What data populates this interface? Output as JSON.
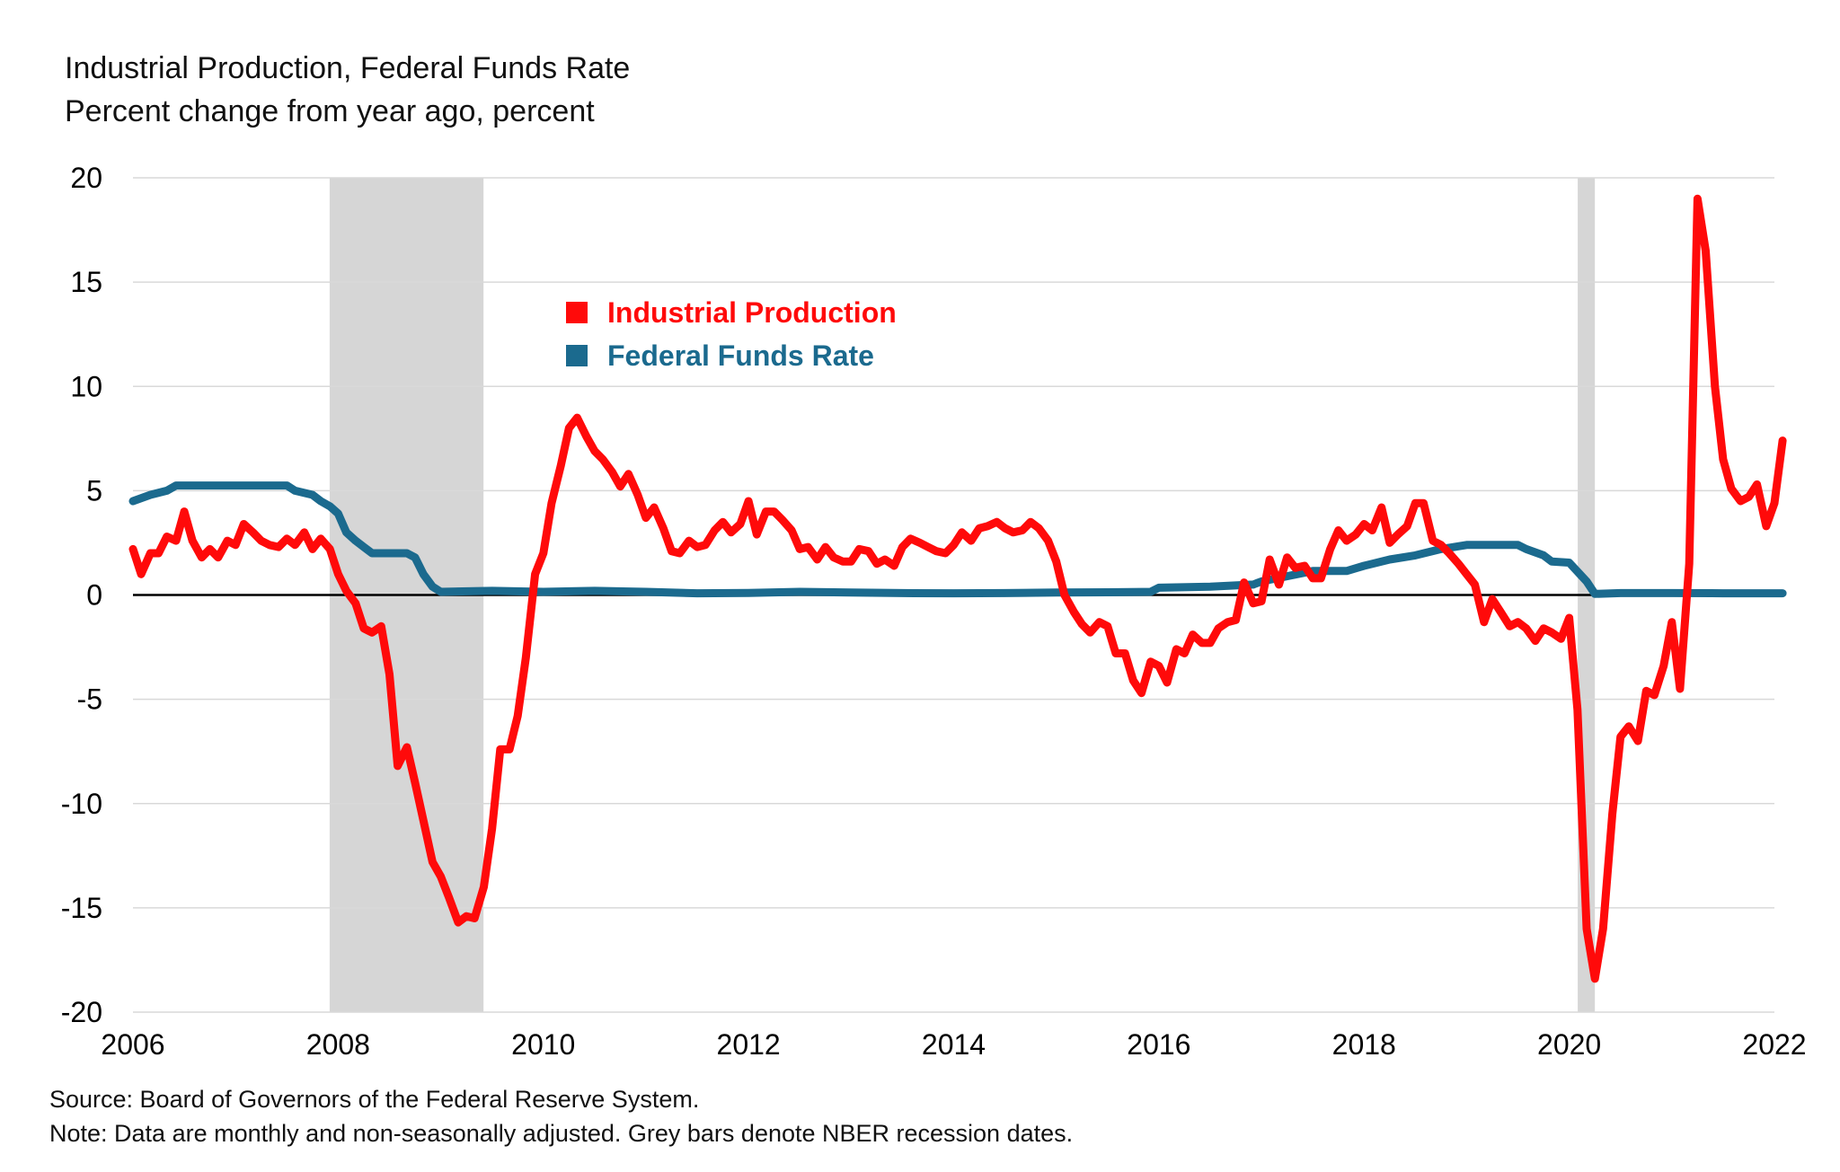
{
  "header": {
    "line1": "Industrial Production, Federal Funds Rate",
    "line2": "Percent change from year ago, percent"
  },
  "footer": {
    "source": "Source: Board of Governors of the Federal Reserve System.",
    "note": "Note: Data are monthly and non-seasonally adjusted. Grey bars denote NBER recession dates."
  },
  "legend": {
    "items": [
      {
        "label": "Industrial Production",
        "color": "#ff0a0a"
      },
      {
        "label": "Federal Funds Rate",
        "color": "#1b6a8e"
      }
    ]
  },
  "chart_data": {
    "type": "line",
    "title": "Industrial Production, Federal Funds Rate",
    "subtitle": "Percent change from year ago, percent",
    "xlabel": "",
    "ylabel": "",
    "xlim": [
      2006,
      2022
    ],
    "ylim": [
      -20,
      20
    ],
    "yticks": [
      20,
      15,
      10,
      5,
      0,
      -5,
      -10,
      -15,
      -20
    ],
    "ytick_labels": [
      "20",
      "15",
      "10",
      "5",
      "0",
      "-5",
      "-10",
      "-15",
      "-20"
    ],
    "xticks": [
      2006,
      2008,
      2010,
      2012,
      2014,
      2016,
      2018,
      2020,
      2022
    ],
    "xtick_labels": [
      "2006",
      "2008",
      "2010",
      "2012",
      "2014",
      "2016",
      "2018",
      "2020",
      "2022"
    ],
    "grid": true,
    "recessions": [
      [
        2007.917,
        2009.417
      ],
      [
        2020.083,
        2020.25
      ]
    ],
    "series": [
      {
        "name": "Industrial Production",
        "color": "#ff0a0a",
        "points": [
          [
            2006.0,
            2.2
          ],
          [
            2006.08,
            1.0
          ],
          [
            2006.17,
            2.0
          ],
          [
            2006.25,
            2.0
          ],
          [
            2006.33,
            2.8
          ],
          [
            2006.42,
            2.6
          ],
          [
            2006.5,
            4.0
          ],
          [
            2006.58,
            2.6
          ],
          [
            2006.67,
            1.8
          ],
          [
            2006.75,
            2.2
          ],
          [
            2006.83,
            1.8
          ],
          [
            2006.92,
            2.6
          ],
          [
            2007.0,
            2.4
          ],
          [
            2007.08,
            3.4
          ],
          [
            2007.17,
            3.0
          ],
          [
            2007.25,
            2.6
          ],
          [
            2007.33,
            2.4
          ],
          [
            2007.42,
            2.3
          ],
          [
            2007.5,
            2.7
          ],
          [
            2007.58,
            2.4
          ],
          [
            2007.67,
            3.0
          ],
          [
            2007.75,
            2.2
          ],
          [
            2007.83,
            2.7
          ],
          [
            2007.92,
            2.2
          ],
          [
            2008.0,
            1.0
          ],
          [
            2008.08,
            0.2
          ],
          [
            2008.17,
            -0.4
          ],
          [
            2008.25,
            -1.6
          ],
          [
            2008.33,
            -1.8
          ],
          [
            2008.42,
            -1.5
          ],
          [
            2008.5,
            -3.8
          ],
          [
            2008.58,
            -8.2
          ],
          [
            2008.67,
            -7.3
          ],
          [
            2008.75,
            -9.0
          ],
          [
            2008.83,
            -10.8
          ],
          [
            2008.92,
            -12.8
          ],
          [
            2009.0,
            -13.5
          ],
          [
            2009.08,
            -14.5
          ],
          [
            2009.17,
            -15.7
          ],
          [
            2009.25,
            -15.4
          ],
          [
            2009.33,
            -15.5
          ],
          [
            2009.42,
            -14.0
          ],
          [
            2009.5,
            -11.2
          ],
          [
            2009.58,
            -7.4
          ],
          [
            2009.67,
            -7.4
          ],
          [
            2009.75,
            -5.8
          ],
          [
            2009.83,
            -3.0
          ],
          [
            2009.92,
            1.0
          ],
          [
            2010.0,
            2.0
          ],
          [
            2010.08,
            4.4
          ],
          [
            2010.17,
            6.2
          ],
          [
            2010.25,
            8.0
          ],
          [
            2010.33,
            8.5
          ],
          [
            2010.42,
            7.6
          ],
          [
            2010.5,
            6.9
          ],
          [
            2010.58,
            6.5
          ],
          [
            2010.67,
            5.9
          ],
          [
            2010.75,
            5.2
          ],
          [
            2010.83,
            5.8
          ],
          [
            2010.92,
            4.8
          ],
          [
            2011.0,
            3.7
          ],
          [
            2011.08,
            4.2
          ],
          [
            2011.17,
            3.2
          ],
          [
            2011.25,
            2.1
          ],
          [
            2011.33,
            2.0
          ],
          [
            2011.42,
            2.6
          ],
          [
            2011.5,
            2.3
          ],
          [
            2011.58,
            2.4
          ],
          [
            2011.67,
            3.1
          ],
          [
            2011.75,
            3.5
          ],
          [
            2011.83,
            3.0
          ],
          [
            2011.92,
            3.4
          ],
          [
            2012.0,
            4.5
          ],
          [
            2012.08,
            2.9
          ],
          [
            2012.17,
            4.0
          ],
          [
            2012.25,
            4.0
          ],
          [
            2012.33,
            3.6
          ],
          [
            2012.42,
            3.1
          ],
          [
            2012.5,
            2.2
          ],
          [
            2012.58,
            2.3
          ],
          [
            2012.67,
            1.7
          ],
          [
            2012.75,
            2.3
          ],
          [
            2012.83,
            1.8
          ],
          [
            2012.92,
            1.6
          ],
          [
            2013.0,
            1.6
          ],
          [
            2013.08,
            2.2
          ],
          [
            2013.17,
            2.1
          ],
          [
            2013.25,
            1.5
          ],
          [
            2013.33,
            1.7
          ],
          [
            2013.42,
            1.4
          ],
          [
            2013.5,
            2.3
          ],
          [
            2013.58,
            2.7
          ],
          [
            2013.67,
            2.5
          ],
          [
            2013.75,
            2.3
          ],
          [
            2013.83,
            2.1
          ],
          [
            2013.92,
            2.0
          ],
          [
            2014.0,
            2.4
          ],
          [
            2014.08,
            3.0
          ],
          [
            2014.17,
            2.6
          ],
          [
            2014.25,
            3.2
          ],
          [
            2014.33,
            3.3
          ],
          [
            2014.42,
            3.5
          ],
          [
            2014.5,
            3.2
          ],
          [
            2014.58,
            3.0
          ],
          [
            2014.67,
            3.1
          ],
          [
            2014.75,
            3.5
          ],
          [
            2014.83,
            3.2
          ],
          [
            2014.92,
            2.6
          ],
          [
            2015.0,
            1.6
          ],
          [
            2015.08,
            0.0
          ],
          [
            2015.17,
            -0.8
          ],
          [
            2015.25,
            -1.4
          ],
          [
            2015.33,
            -1.8
          ],
          [
            2015.42,
            -1.3
          ],
          [
            2015.5,
            -1.5
          ],
          [
            2015.58,
            -2.8
          ],
          [
            2015.67,
            -2.8
          ],
          [
            2015.75,
            -4.1
          ],
          [
            2015.83,
            -4.7
          ],
          [
            2015.92,
            -3.2
          ],
          [
            2016.0,
            -3.4
          ],
          [
            2016.08,
            -4.2
          ],
          [
            2016.17,
            -2.6
          ],
          [
            2016.25,
            -2.8
          ],
          [
            2016.33,
            -1.9
          ],
          [
            2016.42,
            -2.3
          ],
          [
            2016.5,
            -2.3
          ],
          [
            2016.58,
            -1.6
          ],
          [
            2016.67,
            -1.3
          ],
          [
            2016.75,
            -1.2
          ],
          [
            2016.83,
            0.6
          ],
          [
            2016.92,
            -0.4
          ],
          [
            2017.0,
            -0.3
          ],
          [
            2017.08,
            1.7
          ],
          [
            2017.17,
            0.5
          ],
          [
            2017.25,
            1.8
          ],
          [
            2017.33,
            1.3
          ],
          [
            2017.42,
            1.4
          ],
          [
            2017.5,
            0.8
          ],
          [
            2017.58,
            0.8
          ],
          [
            2017.67,
            2.2
          ],
          [
            2017.75,
            3.1
          ],
          [
            2017.83,
            2.6
          ],
          [
            2017.92,
            2.9
          ],
          [
            2018.0,
            3.4
          ],
          [
            2018.08,
            3.1
          ],
          [
            2018.17,
            4.2
          ],
          [
            2018.25,
            2.5
          ],
          [
            2018.33,
            2.9
          ],
          [
            2018.42,
            3.3
          ],
          [
            2018.5,
            4.4
          ],
          [
            2018.58,
            4.4
          ],
          [
            2018.67,
            2.6
          ],
          [
            2018.75,
            2.4
          ],
          [
            2018.83,
            2.0
          ],
          [
            2018.92,
            1.5
          ],
          [
            2019.0,
            1.0
          ],
          [
            2019.08,
            0.5
          ],
          [
            2019.17,
            -1.3
          ],
          [
            2019.25,
            -0.2
          ],
          [
            2019.33,
            -0.8
          ],
          [
            2019.42,
            -1.5
          ],
          [
            2019.5,
            -1.3
          ],
          [
            2019.58,
            -1.6
          ],
          [
            2019.67,
            -2.2
          ],
          [
            2019.75,
            -1.6
          ],
          [
            2019.83,
            -1.8
          ],
          [
            2019.92,
            -2.1
          ],
          [
            2020.0,
            -1.1
          ],
          [
            2020.08,
            -5.5
          ],
          [
            2020.17,
            -16.0
          ],
          [
            2020.25,
            -18.4
          ],
          [
            2020.33,
            -16.0
          ],
          [
            2020.42,
            -10.5
          ],
          [
            2020.5,
            -6.8
          ],
          [
            2020.58,
            -6.3
          ],
          [
            2020.67,
            -7.0
          ],
          [
            2020.75,
            -4.6
          ],
          [
            2020.83,
            -4.8
          ],
          [
            2020.92,
            -3.4
          ],
          [
            2021.0,
            -1.3
          ],
          [
            2021.08,
            -4.5
          ],
          [
            2021.17,
            1.5
          ],
          [
            2021.25,
            19.0
          ],
          [
            2021.33,
            16.5
          ],
          [
            2021.42,
            10.0
          ],
          [
            2021.5,
            6.5
          ],
          [
            2021.58,
            5.1
          ],
          [
            2021.67,
            4.5
          ],
          [
            2021.75,
            4.7
          ],
          [
            2021.83,
            5.3
          ],
          [
            2021.92,
            3.3
          ],
          [
            2022.0,
            4.4
          ],
          [
            2022.08,
            7.4
          ]
        ]
      },
      {
        "name": "Federal Funds Rate",
        "color": "#1b6a8e",
        "points": [
          [
            2006.0,
            4.5
          ],
          [
            2006.17,
            4.8
          ],
          [
            2006.33,
            5.0
          ],
          [
            2006.42,
            5.25
          ],
          [
            2006.5,
            5.25
          ],
          [
            2007.0,
            5.25
          ],
          [
            2007.5,
            5.25
          ],
          [
            2007.58,
            5.0
          ],
          [
            2007.75,
            4.8
          ],
          [
            2007.83,
            4.5
          ],
          [
            2007.92,
            4.25
          ],
          [
            2008.0,
            3.9
          ],
          [
            2008.08,
            3.0
          ],
          [
            2008.17,
            2.6
          ],
          [
            2008.25,
            2.3
          ],
          [
            2008.33,
            2.0
          ],
          [
            2008.5,
            2.0
          ],
          [
            2008.67,
            2.0
          ],
          [
            2008.75,
            1.8
          ],
          [
            2008.83,
            1.0
          ],
          [
            2008.92,
            0.4
          ],
          [
            2009.0,
            0.15
          ],
          [
            2009.5,
            0.2
          ],
          [
            2010.0,
            0.15
          ],
          [
            2010.5,
            0.2
          ],
          [
            2011.0,
            0.15
          ],
          [
            2011.5,
            0.08
          ],
          [
            2012.0,
            0.1
          ],
          [
            2012.5,
            0.15
          ],
          [
            2013.0,
            0.12
          ],
          [
            2013.5,
            0.09
          ],
          [
            2014.0,
            0.08
          ],
          [
            2014.5,
            0.09
          ],
          [
            2015.0,
            0.12
          ],
          [
            2015.5,
            0.13
          ],
          [
            2015.92,
            0.15
          ],
          [
            2016.0,
            0.35
          ],
          [
            2016.5,
            0.4
          ],
          [
            2016.92,
            0.5
          ],
          [
            2017.0,
            0.65
          ],
          [
            2017.25,
            0.9
          ],
          [
            2017.5,
            1.15
          ],
          [
            2017.83,
            1.15
          ],
          [
            2018.0,
            1.4
          ],
          [
            2018.25,
            1.7
          ],
          [
            2018.5,
            1.9
          ],
          [
            2018.75,
            2.2
          ],
          [
            2019.0,
            2.4
          ],
          [
            2019.5,
            2.4
          ],
          [
            2019.58,
            2.2
          ],
          [
            2019.75,
            1.9
          ],
          [
            2019.83,
            1.6
          ],
          [
            2020.0,
            1.55
          ],
          [
            2020.17,
            0.65
          ],
          [
            2020.25,
            0.05
          ],
          [
            2020.5,
            0.09
          ],
          [
            2021.0,
            0.09
          ],
          [
            2021.5,
            0.08
          ],
          [
            2022.0,
            0.08
          ],
          [
            2022.08,
            0.08
          ]
        ]
      }
    ]
  }
}
